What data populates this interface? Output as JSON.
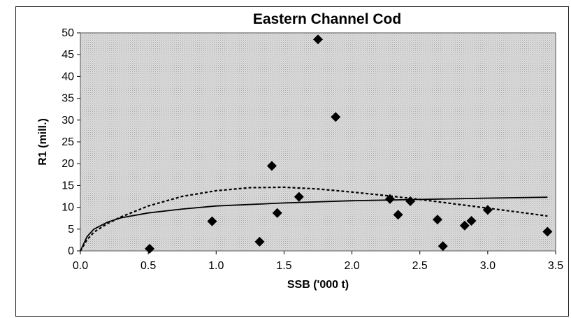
{
  "chart_data": {
    "type": "scatter",
    "title": "Eastern Channel Cod",
    "xlabel": "SSB ('000 t)",
    "ylabel": "R1 (mill.)",
    "xlim": [
      0,
      3.5
    ],
    "ylim": [
      0,
      50
    ],
    "x_ticks": [
      "0.0",
      "0.5",
      "1.0",
      "1.5",
      "2.0",
      "2.5",
      "3.0",
      "3.5"
    ],
    "y_ticks": [
      "0",
      "5",
      "10",
      "15",
      "20",
      "25",
      "30",
      "35",
      "40",
      "45",
      "50"
    ],
    "grid": false,
    "legend": "none",
    "plot_background": "#d9d9d9",
    "series": [
      {
        "type": "scatter",
        "marker": "diamond",
        "color": "#000000",
        "points": [
          {
            "x": 0.51,
            "y": 0.5
          },
          {
            "x": 0.97,
            "y": 6.8
          },
          {
            "x": 1.32,
            "y": 2.1
          },
          {
            "x": 1.41,
            "y": 19.5
          },
          {
            "x": 1.45,
            "y": 8.7
          },
          {
            "x": 1.61,
            "y": 12.4
          },
          {
            "x": 1.75,
            "y": 48.5
          },
          {
            "x": 1.88,
            "y": 30.7
          },
          {
            "x": 2.28,
            "y": 11.9
          },
          {
            "x": 2.34,
            "y": 8.3
          },
          {
            "x": 2.43,
            "y": 11.4
          },
          {
            "x": 2.63,
            "y": 7.2
          },
          {
            "x": 2.67,
            "y": 1.1
          },
          {
            "x": 2.83,
            "y": 5.8
          },
          {
            "x": 2.88,
            "y": 6.9
          },
          {
            "x": 3.0,
            "y": 9.4
          },
          {
            "x": 3.44,
            "y": 4.4
          }
        ]
      },
      {
        "type": "line",
        "style": "solid",
        "color": "#000000",
        "points": [
          {
            "x": 0.0,
            "y": 0.0
          },
          {
            "x": 0.05,
            "y": 3.3
          },
          {
            "x": 0.1,
            "y": 5.0
          },
          {
            "x": 0.2,
            "y": 6.6
          },
          {
            "x": 0.3,
            "y": 7.6
          },
          {
            "x": 0.5,
            "y": 8.7
          },
          {
            "x": 0.75,
            "y": 9.6
          },
          {
            "x": 1.0,
            "y": 10.3
          },
          {
            "x": 1.5,
            "y": 11.0
          },
          {
            "x": 2.0,
            "y": 11.5
          },
          {
            "x": 2.5,
            "y": 11.8
          },
          {
            "x": 3.0,
            "y": 12.1
          },
          {
            "x": 3.44,
            "y": 12.3
          }
        ]
      },
      {
        "type": "line",
        "style": "dashed",
        "color": "#000000",
        "points": [
          {
            "x": 0.0,
            "y": 0.0
          },
          {
            "x": 0.05,
            "y": 2.6
          },
          {
            "x": 0.1,
            "y": 4.3
          },
          {
            "x": 0.2,
            "y": 6.3
          },
          {
            "x": 0.3,
            "y": 7.8
          },
          {
            "x": 0.5,
            "y": 10.3
          },
          {
            "x": 0.75,
            "y": 12.5
          },
          {
            "x": 1.0,
            "y": 13.8
          },
          {
            "x": 1.25,
            "y": 14.5
          },
          {
            "x": 1.5,
            "y": 14.6
          },
          {
            "x": 1.75,
            "y": 14.2
          },
          {
            "x": 2.0,
            "y": 13.5
          },
          {
            "x": 2.25,
            "y": 12.7
          },
          {
            "x": 2.5,
            "y": 11.8
          },
          {
            "x": 2.75,
            "y": 10.8
          },
          {
            "x": 3.0,
            "y": 9.8
          },
          {
            "x": 3.25,
            "y": 8.8
          },
          {
            "x": 3.44,
            "y": 8.0
          }
        ]
      }
    ]
  }
}
